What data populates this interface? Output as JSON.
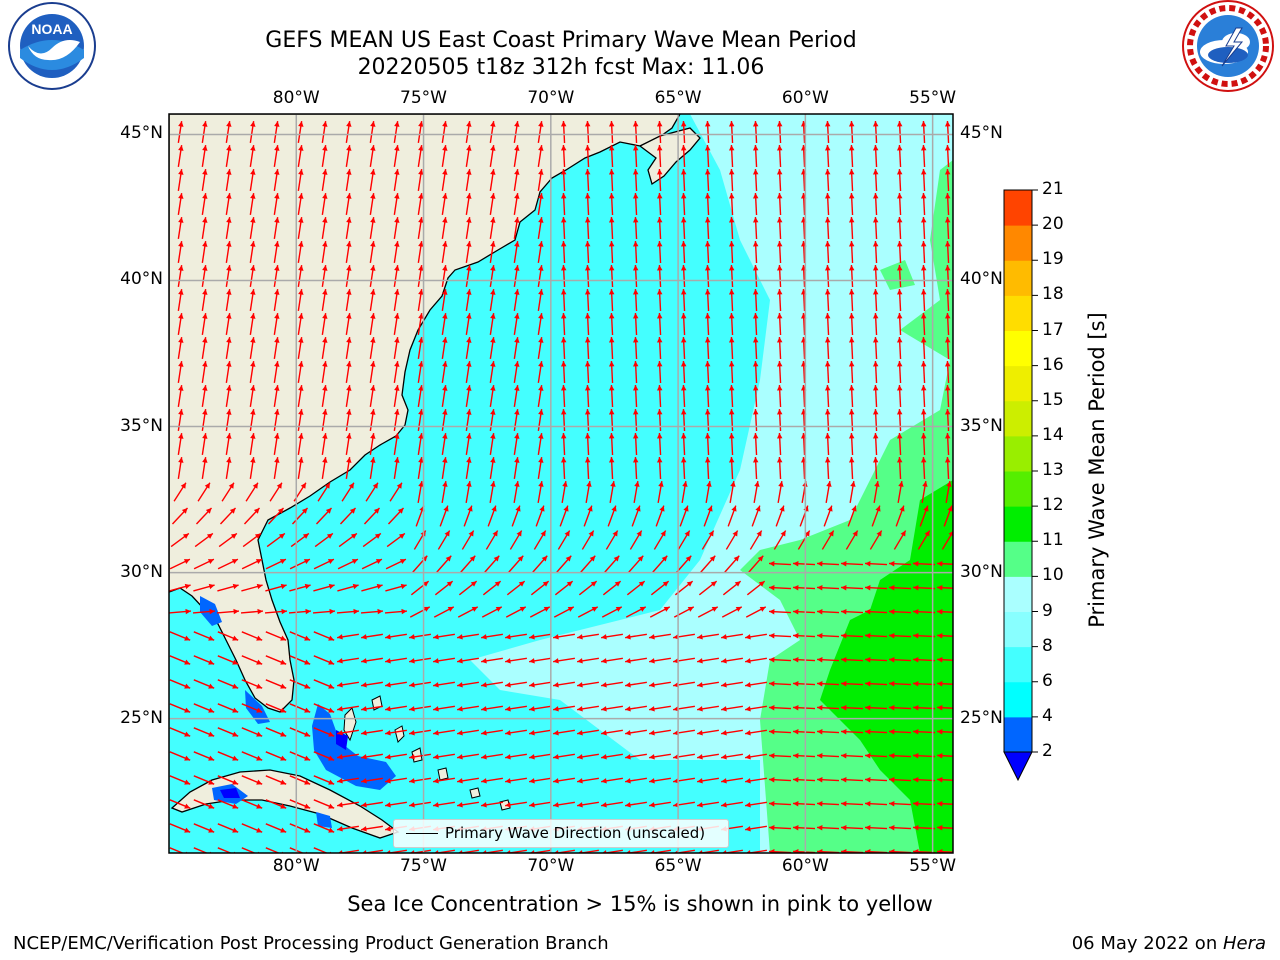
{
  "header": {
    "title_line1": "GEFS MEAN US East Coast Primary Wave Mean Period",
    "title_line2": "20220505 t18z 312h fcst   Max: 11.06"
  },
  "logos": {
    "left": {
      "text": "NOAA",
      "ring_text": "NATIONAL OCEANIC AND ATMOSPHERIC ADMINISTRATION · U.S. DEPARTMENT OF COMMERCE"
    },
    "right": {
      "ring_text": "NATIONAL WEATHER SERVICE"
    }
  },
  "map": {
    "lon_ticks": [
      "80°W",
      "75°W",
      "70°W",
      "65°W",
      "60°W",
      "55°W"
    ],
    "lat_ticks": [
      "45°N",
      "40°N",
      "35°N",
      "30°N",
      "25°N"
    ],
    "lon_values": [
      -80,
      -75,
      -70,
      -65,
      -60,
      -55
    ],
    "lat_values": [
      45,
      40,
      35,
      30,
      25
    ],
    "extent": {
      "lon_min": -85,
      "lon_max": -54.2,
      "lat_min": 20.4,
      "lat_max": 45.7
    },
    "legend_label": "Primary Wave Direction (unscaled)",
    "colors": {
      "land": "#efeedd",
      "arrow": "#ff0000",
      "coast": "#000000",
      "grid": "#aaaaaa"
    }
  },
  "colorbar": {
    "label": "Primary Wave Mean Period [s]",
    "ticks": [
      "2",
      "4",
      "6",
      "8",
      "9",
      "10",
      "11",
      "12",
      "13",
      "14",
      "15",
      "16",
      "17",
      "18",
      "19",
      "20",
      "21"
    ],
    "colors": [
      "#0066ff",
      "#00ffff",
      "#44ffff",
      "#88ffff",
      "#aaffff",
      "#55ff88",
      "#00ee00",
      "#55ee00",
      "#99ee00",
      "#ccee00",
      "#eeee00",
      "#ffff00",
      "#ffdd00",
      "#ffbb00",
      "#ff8800",
      "#ff4400",
      "#ff0000"
    ],
    "under_color": "#0000ff"
  },
  "footer": {
    "note": "Sea Ice Concentration > 15% is shown in pink to yellow",
    "credit": "NCEP/EMC/Verification Post Processing Product Generation Branch",
    "date": "06 May 2022 on ",
    "machine": "Hera"
  }
}
